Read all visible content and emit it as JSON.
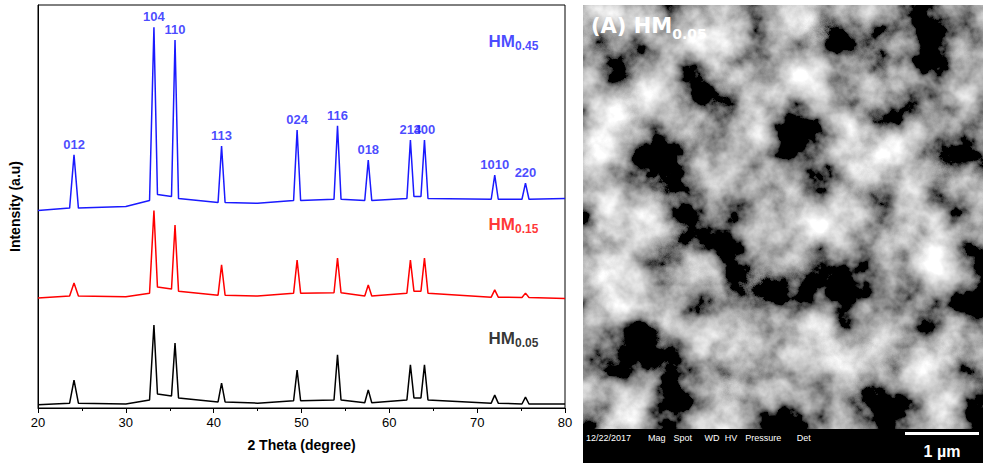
{
  "chart_data": {
    "type": "line",
    "xlabel": "2 Theta (degree)",
    "ylabel": "Intensity (a.u)",
    "x": [
      20,
      23.6,
      24.1,
      24.6,
      30,
      32.7,
      33.2,
      33.6,
      35.2,
      35.6,
      36.0,
      40.5,
      40.9,
      41.3,
      45,
      49.1,
      49.5,
      49.9,
      53.7,
      54.1,
      54.5,
      57.2,
      57.6,
      58.0,
      62.0,
      62.4,
      62.8,
      63.6,
      64.0,
      64.4,
      71.6,
      72.0,
      72.4,
      75.1,
      75.5,
      75.9,
      80
    ],
    "series": [
      {
        "name": "HM0.05",
        "color": "#000000",
        "values": [
          0.8,
          1.2,
          6.9,
          1.2,
          1.0,
          2.0,
          20.6,
          3.5,
          3.0,
          16.1,
          2.5,
          1.5,
          6.2,
          1.5,
          1.2,
          1.8,
          9.4,
          1.8,
          2.0,
          13.2,
          2.0,
          1.3,
          4.5,
          1.3,
          2.0,
          10.7,
          2.5,
          2.5,
          10.7,
          2.0,
          1.2,
          3.2,
          1.2,
          1.0,
          2.7,
          1.0,
          1.0
        ]
      },
      {
        "name": "HM0.15",
        "color": "#ff0000",
        "values": [
          27.3,
          27.8,
          31.0,
          27.8,
          27.6,
          28.5,
          49.0,
          30.0,
          29.5,
          45.4,
          29.0,
          28.0,
          35.5,
          28.0,
          27.8,
          28.5,
          36.7,
          28.5,
          28.6,
          37.2,
          28.6,
          27.8,
          30.5,
          27.8,
          28.5,
          36.7,
          29.0,
          29.0,
          37.2,
          28.5,
          27.5,
          29.3,
          27.5,
          27.4,
          28.5,
          27.4,
          27.2
        ]
      },
      {
        "name": "HM0.45",
        "color": "#1a1aff",
        "values": [
          49.0,
          49.6,
          62.8,
          49.6,
          50.0,
          51.5,
          94.5,
          53.0,
          52.5,
          91.3,
          52.0,
          51.0,
          65.0,
          51.0,
          50.8,
          51.5,
          69.0,
          51.5,
          51.8,
          70.0,
          51.8,
          51.5,
          61.5,
          51.5,
          52.0,
          66.5,
          52.5,
          52.5,
          66.5,
          52.0,
          51.8,
          57.8,
          51.8,
          51.8,
          55.8,
          51.8,
          52.0
        ]
      }
    ],
    "xlim": [
      20,
      80
    ],
    "xticks": [
      20,
      30,
      40,
      50,
      60,
      70,
      80
    ],
    "ylim": [
      0,
      100
    ],
    "grid": false,
    "tick_labels": "x",
    "annotations": [
      {
        "text": "012",
        "x": 24.1
      },
      {
        "text": "104",
        "x": 33.2
      },
      {
        "text": "110",
        "x": 35.6
      },
      {
        "text": "113",
        "x": 40.9
      },
      {
        "text": "024",
        "x": 49.5
      },
      {
        "text": "116",
        "x": 54.1
      },
      {
        "text": "018",
        "x": 57.6
      },
      {
        "text": "214",
        "x": 62.4
      },
      {
        "text": "300",
        "x": 64.0
      },
      {
        "text": "1010",
        "x": 72.0
      },
      {
        "text": "220",
        "x": 75.5
      }
    ]
  },
  "image_panel": {
    "title": "(A) HM0.05",
    "info_bar": [
      "12/22/2017",
      "Mag",
      "Spot",
      "WD",
      "HV",
      "Pressure",
      "Det"
    ],
    "scale_bar": "1 µm"
  }
}
